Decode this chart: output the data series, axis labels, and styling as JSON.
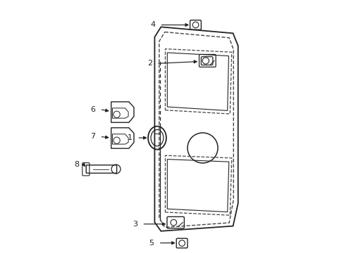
{
  "background_color": "#ffffff",
  "figure_width": 4.89,
  "figure_height": 3.6,
  "dpi": 100,
  "line_color": "#222222",
  "dashed_color": "#444444"
}
